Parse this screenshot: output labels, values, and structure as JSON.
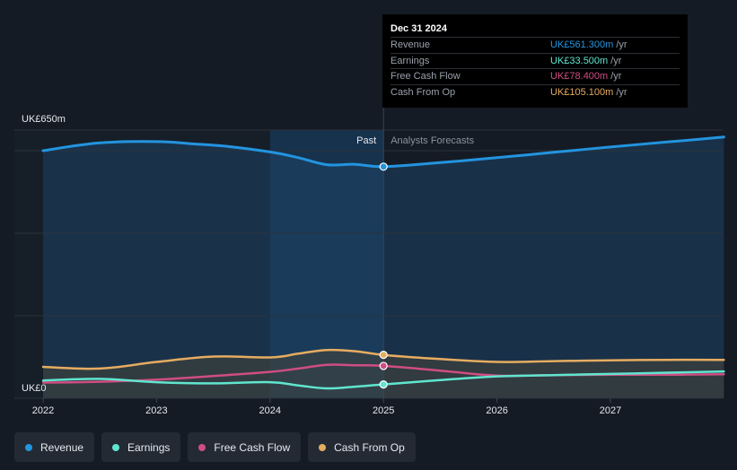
{
  "colors": {
    "background": "#151b24",
    "revenue": "#2394df",
    "earnings": "#60e5cf",
    "free_cash_flow": "#cf4d83",
    "cash_from_op": "#e6ac61",
    "past_highlight": "#17324d"
  },
  "tooltip": {
    "date": "Dec 31 2024",
    "rows": [
      {
        "label": "Revenue",
        "value": "UK£561.300m",
        "unit": "/yr",
        "color": "#2394df"
      },
      {
        "label": "Earnings",
        "value": "UK£33.500m",
        "unit": "/yr",
        "color": "#60e5cf"
      },
      {
        "label": "Free Cash Flow",
        "value": "UK£78.400m",
        "unit": "/yr",
        "color": "#cf4d83"
      },
      {
        "label": "Cash From Op",
        "value": "UK£105.100m",
        "unit": "/yr",
        "color": "#e6ac61"
      }
    ]
  },
  "legend": [
    {
      "label": "Revenue",
      "icon": "revenue-dot-icon",
      "color": "#2394df"
    },
    {
      "label": "Earnings",
      "icon": "earnings-dot-icon",
      "color": "#60e5cf"
    },
    {
      "label": "Free Cash Flow",
      "icon": "free-cash-flow-dot-icon",
      "color": "#cf4d83"
    },
    {
      "label": "Cash From Op",
      "icon": "cash-from-op-dot-icon",
      "color": "#e6ac61"
    }
  ],
  "chart_data": {
    "type": "line",
    "y_top_label": "UK£650m",
    "y_bottom_label": "UK£0",
    "ylim": [
      0,
      650
    ],
    "xlim": [
      2022,
      2028
    ],
    "x_ticks": [
      "2022",
      "2023",
      "2024",
      "2025",
      "2026",
      "2027"
    ],
    "divider_x": 2025,
    "highlight_start_x": 2024,
    "past_label": "Past",
    "forecast_label": "Analysts Forecasts",
    "grid": true,
    "series": [
      {
        "name": "Revenue",
        "color": "#2394df",
        "points": [
          [
            2022,
            600
          ],
          [
            2022.5,
            619
          ],
          [
            2023,
            622
          ],
          [
            2023.3,
            617
          ],
          [
            2023.6,
            611
          ],
          [
            2024,
            597
          ],
          [
            2024.25,
            583
          ],
          [
            2024.5,
            566
          ],
          [
            2024.75,
            567
          ],
          [
            2025,
            561.3
          ],
          [
            2025.5,
            571
          ],
          [
            2026,
            583
          ],
          [
            2026.5,
            596
          ],
          [
            2027,
            609
          ],
          [
            2027.5,
            621
          ],
          [
            2028,
            633
          ]
        ]
      },
      {
        "name": "Earnings",
        "color": "#60e5cf",
        "points": [
          [
            2022,
            43
          ],
          [
            2022.5,
            47
          ],
          [
            2023,
            39
          ],
          [
            2023.5,
            36
          ],
          [
            2024,
            39
          ],
          [
            2024.25,
            31
          ],
          [
            2024.5,
            24
          ],
          [
            2024.75,
            28
          ],
          [
            2025,
            33.5
          ],
          [
            2025.5,
            44
          ],
          [
            2026,
            53
          ],
          [
            2026.5,
            56
          ],
          [
            2027,
            59
          ],
          [
            2027.5,
            62
          ],
          [
            2028,
            65
          ]
        ]
      },
      {
        "name": "Free Cash Flow",
        "color": "#cf4d83",
        "points": [
          [
            2022,
            38
          ],
          [
            2022.5,
            40
          ],
          [
            2023,
            45
          ],
          [
            2023.5,
            54
          ],
          [
            2024,
            64
          ],
          [
            2024.25,
            72
          ],
          [
            2024.5,
            81
          ],
          [
            2024.75,
            80
          ],
          [
            2025,
            78.4
          ],
          [
            2025.5,
            67
          ],
          [
            2026,
            55
          ],
          [
            2026.5,
            56
          ],
          [
            2027,
            57
          ],
          [
            2027.5,
            57
          ],
          [
            2028,
            58
          ]
        ]
      },
      {
        "name": "Cash From Op",
        "color": "#e6ac61",
        "points": [
          [
            2022,
            76
          ],
          [
            2022.5,
            72
          ],
          [
            2023,
            88
          ],
          [
            2023.5,
            101
          ],
          [
            2024,
            99
          ],
          [
            2024.25,
            108
          ],
          [
            2024.5,
            117
          ],
          [
            2024.75,
            114
          ],
          [
            2025,
            105.1
          ],
          [
            2025.5,
            95
          ],
          [
            2026,
            88
          ],
          [
            2026.5,
            90
          ],
          [
            2027,
            92
          ],
          [
            2027.5,
            93
          ],
          [
            2028,
            93
          ]
        ]
      }
    ]
  }
}
